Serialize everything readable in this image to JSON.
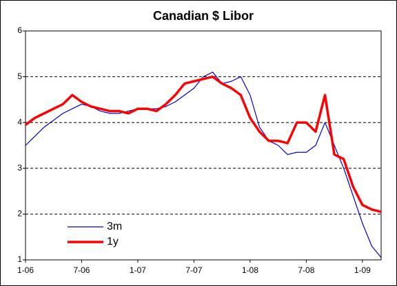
{
  "chart_data": {
    "type": "line",
    "title": "Canadian $ Libor",
    "x": [
      "2006-01",
      "2006-02",
      "2006-03",
      "2006-04",
      "2006-05",
      "2006-06",
      "2006-07",
      "2006-08",
      "2006-09",
      "2006-10",
      "2006-11",
      "2006-12",
      "2007-01",
      "2007-02",
      "2007-03",
      "2007-04",
      "2007-05",
      "2007-06",
      "2007-07",
      "2007-08",
      "2007-09",
      "2007-10",
      "2007-11",
      "2007-12",
      "2008-01",
      "2008-02",
      "2008-03",
      "2008-04",
      "2008-05",
      "2008-06",
      "2008-07",
      "2008-08",
      "2008-09",
      "2008-10",
      "2008-11",
      "2008-12",
      "2009-01",
      "2009-02",
      "2009-03"
    ],
    "series": [
      {
        "name": "3m",
        "color": "#0000cc",
        "width": 1.2,
        "values": [
          3.5,
          3.7,
          3.9,
          4.05,
          4.2,
          4.3,
          4.4,
          4.35,
          4.25,
          4.2,
          4.2,
          4.25,
          4.3,
          4.3,
          4.3,
          4.35,
          4.45,
          4.6,
          4.75,
          5.0,
          5.1,
          4.85,
          4.9,
          5.0,
          4.6,
          3.9,
          3.6,
          3.5,
          3.3,
          3.35,
          3.35,
          3.5,
          4.0,
          3.5,
          3.0,
          2.4,
          1.8,
          1.3,
          1.05
        ]
      },
      {
        "name": "1y",
        "color": "#ff0000",
        "width": 3.5,
        "values": [
          3.95,
          4.1,
          4.2,
          4.3,
          4.4,
          4.6,
          4.45,
          4.35,
          4.3,
          4.25,
          4.25,
          4.2,
          4.3,
          4.3,
          4.25,
          4.4,
          4.6,
          4.85,
          4.9,
          4.95,
          5.0,
          4.85,
          4.75,
          4.6,
          4.1,
          3.8,
          3.6,
          3.6,
          3.55,
          4.0,
          4.0,
          3.8,
          4.6,
          3.3,
          3.2,
          2.6,
          2.2,
          2.1,
          2.05
        ]
      }
    ],
    "xlim": [
      "2006-01",
      "2009-03"
    ],
    "xticks": [
      {
        "value": "2006-01",
        "label": "1-06"
      },
      {
        "value": "2006-07",
        "label": "7-06"
      },
      {
        "value": "2007-01",
        "label": "1-07"
      },
      {
        "value": "2007-07",
        "label": "7-07"
      },
      {
        "value": "2008-01",
        "label": "1-08"
      },
      {
        "value": "2008-07",
        "label": "7-08"
      },
      {
        "value": "2009-01",
        "label": "1-09"
      }
    ],
    "ylim": [
      1,
      6
    ],
    "yticks": [
      1,
      2,
      3,
      4,
      5,
      6
    ],
    "grid": true,
    "legend": "lower-left"
  }
}
